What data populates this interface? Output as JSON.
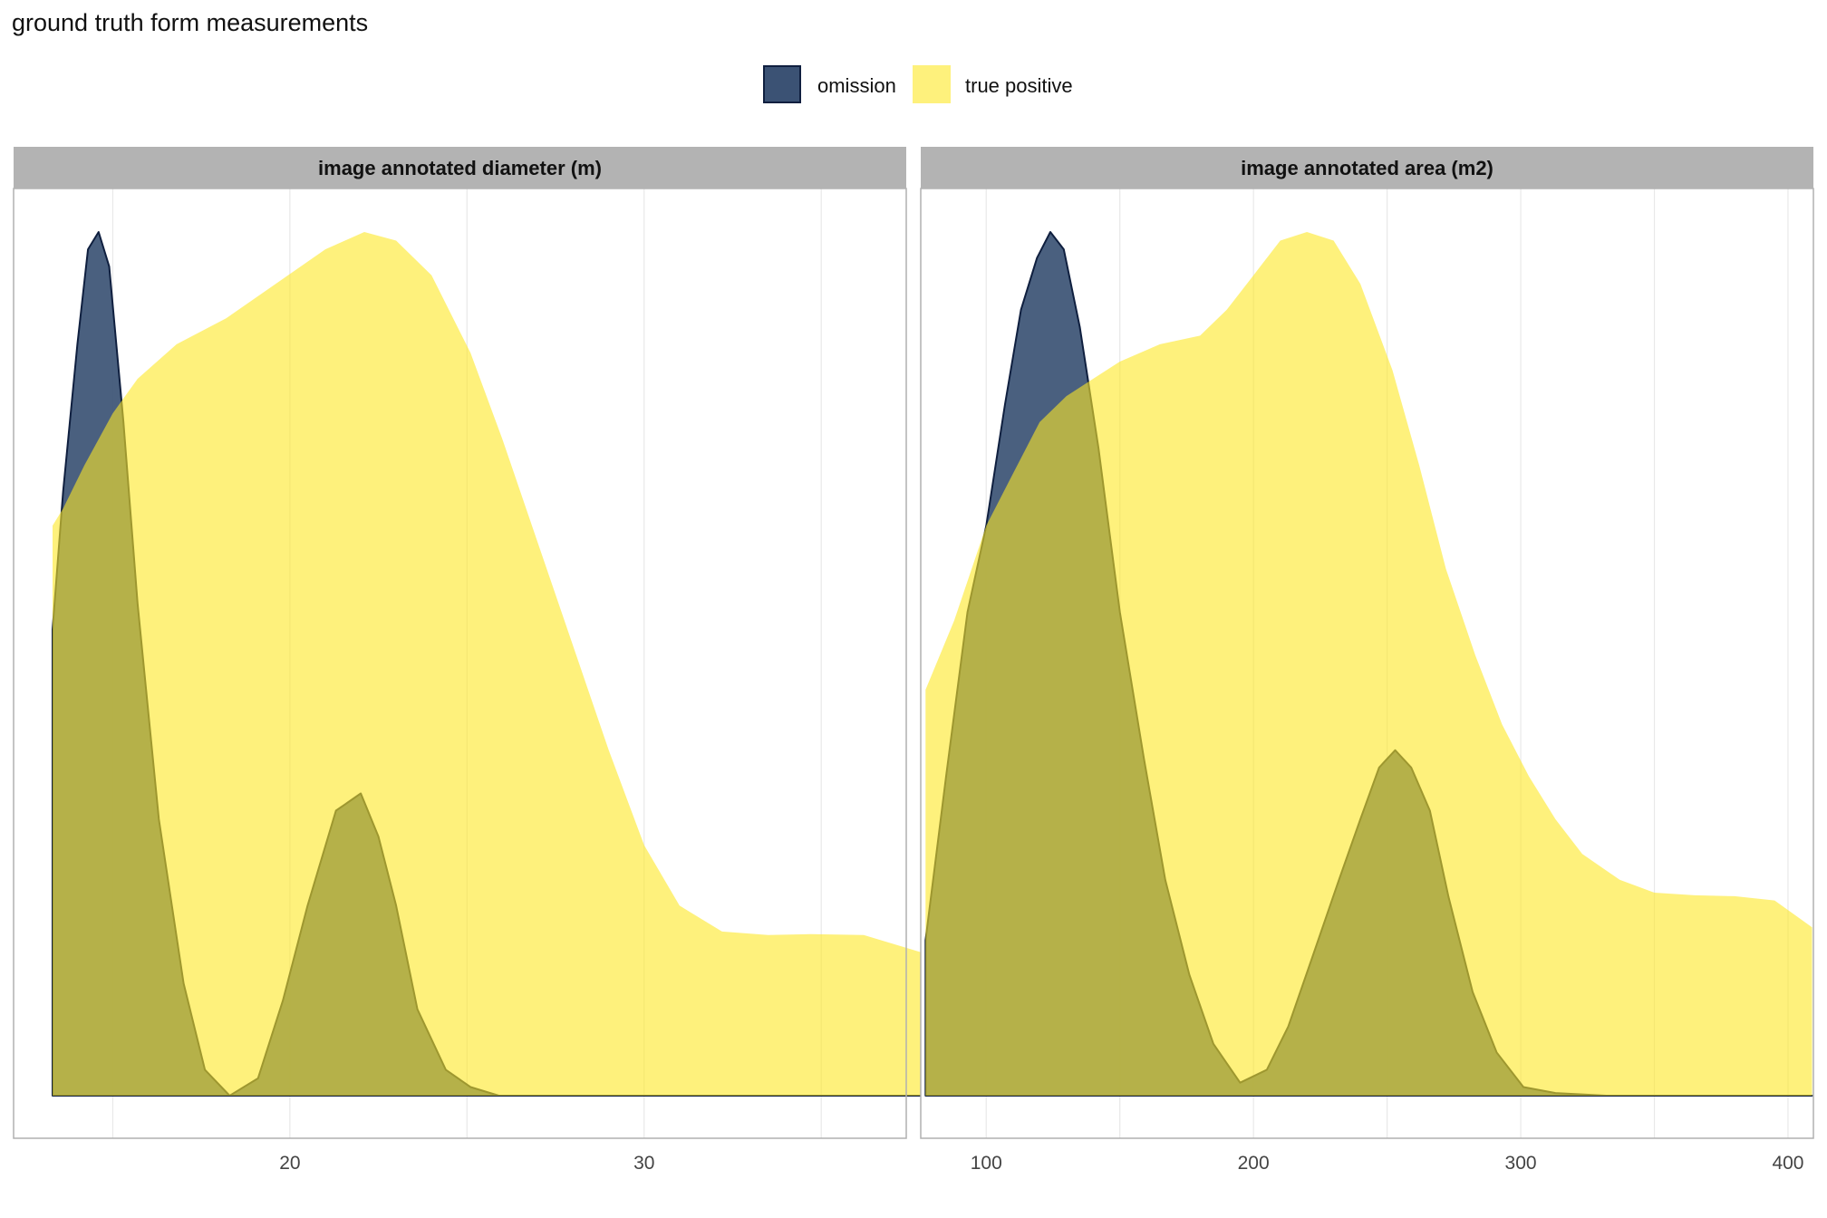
{
  "title": "ground truth form measurements",
  "legend": {
    "items": [
      {
        "label": "omission",
        "color": "#3b5274",
        "border": "#0f1f3f"
      },
      {
        "label": "true positive",
        "color": "#fde725",
        "border": "#fde725"
      }
    ]
  },
  "colors": {
    "omission_fill": "#3b5274",
    "omission_line": "#0f1f3f",
    "true_positive_fill": "#fde725",
    "strip_bg": "#b3b3b3",
    "grid": "#e8e8e8",
    "panel_border": "#b0b0b0"
  },
  "chart_data": [
    {
      "type": "area",
      "title": "image annotated diameter (m)",
      "xlabel": "",
      "ylabel": "",
      "xlim": [
        12.2,
        37.4
      ],
      "x_ticks": [
        20,
        30
      ],
      "ylim": [
        0,
        1.0
      ],
      "grid": true,
      "series": [
        {
          "name": "omission",
          "x": [
            13.3,
            13.6,
            14.0,
            14.3,
            14.6,
            14.9,
            15.3,
            15.7,
            16.3,
            17.0,
            17.6,
            18.3,
            19.1,
            19.8,
            20.5,
            21.3,
            22.0,
            22.5,
            23.0,
            23.6,
            24.4,
            25.1,
            25.9,
            37.9
          ],
          "y": [
            0.54,
            0.7,
            0.87,
            0.98,
            1.0,
            0.96,
            0.78,
            0.57,
            0.32,
            0.13,
            0.03,
            0.0,
            0.02,
            0.11,
            0.22,
            0.33,
            0.35,
            0.3,
            0.22,
            0.1,
            0.03,
            0.01,
            0.0,
            0.0
          ]
        },
        {
          "name": "true positive",
          "x": [
            13.3,
            13.6,
            14.2,
            15.0,
            15.7,
            16.8,
            18.2,
            19.6,
            21.0,
            22.1,
            23.0,
            24.0,
            25.1,
            26.0,
            27.0,
            28.0,
            29.0,
            30.0,
            31.0,
            32.2,
            33.5,
            34.7,
            36.2,
            37.9
          ],
          "y": [
            0.66,
            0.68,
            0.73,
            0.79,
            0.83,
            0.87,
            0.9,
            0.94,
            0.98,
            1.0,
            0.99,
            0.95,
            0.86,
            0.76,
            0.64,
            0.52,
            0.4,
            0.29,
            0.22,
            0.19,
            0.186,
            0.187,
            0.186,
            0.165
          ]
        }
      ]
    },
    {
      "type": "area",
      "title": "image annotated area (m2)",
      "xlabel": "",
      "ylabel": "",
      "xlim": [
        75.5,
        409.5
      ],
      "x_ticks": [
        100,
        200,
        300,
        400
      ],
      "ylim": [
        0,
        1.0
      ],
      "grid": true,
      "series": [
        {
          "name": "omission",
          "x": [
            77.3,
            85,
            93,
            100,
            107,
            113,
            119,
            124,
            129,
            135,
            142,
            150,
            159,
            167,
            176,
            185,
            195,
            205,
            213,
            222,
            232,
            240,
            247,
            253,
            259,
            266,
            273,
            282,
            291,
            301,
            313,
            332,
            409
          ],
          "y": [
            0.18,
            0.37,
            0.56,
            0.66,
            0.8,
            0.91,
            0.97,
            1.0,
            0.98,
            0.89,
            0.75,
            0.56,
            0.39,
            0.25,
            0.14,
            0.06,
            0.015,
            0.03,
            0.08,
            0.16,
            0.25,
            0.32,
            0.38,
            0.4,
            0.38,
            0.33,
            0.23,
            0.12,
            0.05,
            0.01,
            0.003,
            0.0,
            0.0
          ]
        },
        {
          "name": "true positive",
          "x": [
            77.3,
            88,
            100,
            110,
            120,
            130,
            140,
            150,
            165,
            180,
            190,
            200,
            210,
            220,
            230,
            240,
            252,
            262,
            272,
            283,
            293,
            303,
            313,
            323,
            337,
            350,
            365,
            380,
            395,
            409
          ],
          "y": [
            0.47,
            0.55,
            0.66,
            0.72,
            0.78,
            0.81,
            0.83,
            0.85,
            0.87,
            0.88,
            0.91,
            0.95,
            0.99,
            1.0,
            0.99,
            0.94,
            0.84,
            0.73,
            0.61,
            0.51,
            0.43,
            0.37,
            0.32,
            0.28,
            0.25,
            0.235,
            0.232,
            0.231,
            0.226,
            0.195
          ]
        }
      ]
    }
  ]
}
